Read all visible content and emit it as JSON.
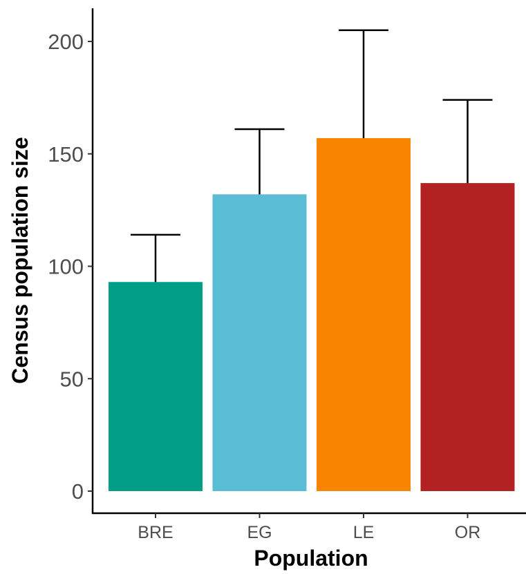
{
  "chart_data": {
    "type": "bar",
    "categories": [
      "BRE",
      "EG",
      "LE",
      "OR"
    ],
    "values": [
      93,
      132,
      157,
      137
    ],
    "error_upper": [
      114,
      161,
      205,
      174
    ],
    "colors": [
      "#009E86",
      "#5BBCD6",
      "#F98400",
      "#B22222"
    ],
    "xlabel": "Population",
    "ylabel": "Census population size",
    "ylim": [
      0,
      215
    ],
    "yticks": [
      0,
      50,
      100,
      150,
      200
    ],
    "ytick_labels": [
      "0",
      "50",
      "100",
      "150",
      "200"
    ],
    "grid": false
  }
}
